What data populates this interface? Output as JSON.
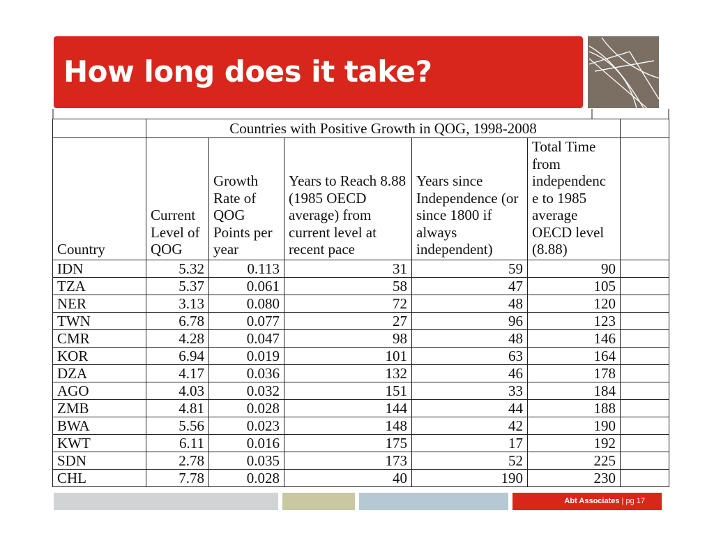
{
  "slide": {
    "title": "How long does it take?",
    "colors": {
      "accent_red": "#d9261c",
      "logo_brown": "#7b6f63"
    }
  },
  "table": {
    "caption": "Countries with Positive Growth in QOG, 1998-2008",
    "headers": {
      "country": "Country",
      "current_level": "Current Level of QOG",
      "growth_rate": "Growth Rate of QOG Points per year",
      "years_to_reach": "Years to Reach 8.88 (1985 OECD average) from current level at recent pace",
      "years_since_independence": "Years since Independence (or since 1800 if always independent)",
      "total_time": "Total Time from independenc e to 1985 average OECD level (8.88)"
    },
    "rows": [
      [
        "IDN",
        "5.32",
        "0.113",
        "31",
        "59",
        "90"
      ],
      [
        "TZA",
        "5.37",
        "0.061",
        "58",
        "47",
        "105"
      ],
      [
        "NER",
        "3.13",
        "0.080",
        "72",
        "48",
        "120"
      ],
      [
        "TWN",
        "6.78",
        "0.077",
        "27",
        "96",
        "123"
      ],
      [
        "CMR",
        "4.28",
        "0.047",
        "98",
        "48",
        "146"
      ],
      [
        "KOR",
        "6.94",
        "0.019",
        "101",
        "63",
        "164"
      ],
      [
        "DZA",
        "4.17",
        "0.036",
        "132",
        "46",
        "178"
      ],
      [
        "AGO",
        "4.03",
        "0.032",
        "151",
        "33",
        "184"
      ],
      [
        "ZMB",
        "4.81",
        "0.028",
        "144",
        "44",
        "188"
      ],
      [
        "BWA",
        "5.56",
        "0.023",
        "148",
        "42",
        "190"
      ],
      [
        "KWT",
        "6.11",
        "0.016",
        "175",
        "17",
        "192"
      ],
      [
        "SDN",
        "2.78",
        "0.035",
        "173",
        "52",
        "225"
      ],
      [
        "CHL",
        "7.78",
        "0.028",
        "40",
        "190",
        "230"
      ]
    ]
  },
  "footer": {
    "brand": "Abt Associates",
    "separator": " | ",
    "page": "pg 17"
  }
}
